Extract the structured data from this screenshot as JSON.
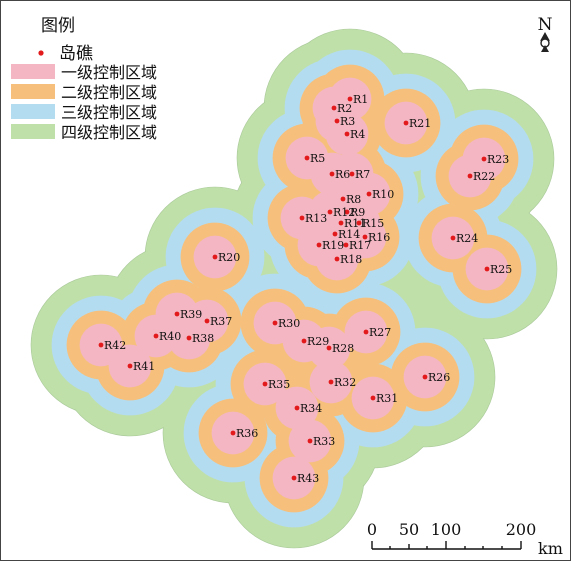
{
  "legend": {
    "title": "图例",
    "items": [
      {
        "label": "岛礁",
        "kind": "point",
        "color": "#e31a1c"
      },
      {
        "label": "一级控制区域",
        "kind": "swatch",
        "color": "#f4b6c2"
      },
      {
        "label": "二级控制区域",
        "kind": "swatch",
        "color": "#f6c07c"
      },
      {
        "label": "三级控制区域",
        "kind": "swatch",
        "color": "#b4dcf0"
      },
      {
        "label": "四级控制区域",
        "kind": "swatch",
        "color": "#bfe0a8"
      }
    ]
  },
  "north_arrow": {
    "label": "N"
  },
  "scale_bar": {
    "labels": [
      "0",
      "50",
      "100",
      "200"
    ],
    "unit": "km"
  },
  "islands": [
    "R1",
    "R2",
    "R3",
    "R4",
    "R5",
    "R6",
    "R7",
    "R8",
    "R9",
    "R10",
    "R11",
    "R12",
    "R13",
    "R14",
    "R15",
    "R16",
    "R17",
    "R18",
    "R19",
    "R20",
    "R21",
    "R22",
    "R23",
    "R24",
    "R25",
    "R26",
    "R27",
    "R28",
    "R29",
    "R30",
    "R31",
    "R32",
    "R33",
    "R34",
    "R35",
    "R36",
    "R37",
    "R38",
    "R39",
    "R40",
    "R41",
    "R42",
    "R43"
  ],
  "colors": {
    "level1": "#f4b6c2",
    "level2": "#f6c07c",
    "level3": "#b4dcf0",
    "level4": "#bfe0a8",
    "island": "#e31a1c"
  }
}
